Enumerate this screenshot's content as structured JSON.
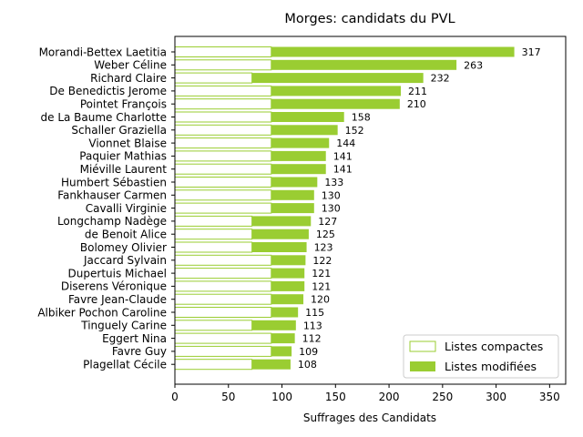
{
  "chart_data": {
    "type": "bar",
    "orientation": "horizontal",
    "stacked": true,
    "title": "Morges: candidats du PVL",
    "xlabel": "Suffrages des Candidats",
    "ylabel": "",
    "xlim": [
      0,
      365
    ],
    "xticks": [
      0,
      50,
      100,
      150,
      200,
      250,
      300,
      350
    ],
    "legend_position": "bottom-right",
    "colors": {
      "compact": "#ffffff",
      "compact_edge": "#9acd32",
      "modified": "#9acd32"
    },
    "categories": [
      "Morandi-Bettex Laetitia",
      "Weber Céline",
      "Richard Claire",
      "De Benedictis Jerome",
      "Pointet François",
      "de La Baume Charlotte",
      "Schaller Graziella",
      "Vionnet Blaise",
      "Paquier Mathias",
      "Miéville Laurent",
      "Humbert Sébastien",
      "Fankhauser Carmen",
      "Cavalli Virginie",
      "Longchamp Nadège",
      "de Benoit Alice",
      "Bolomey Olivier",
      "Jaccard Sylvain",
      "Dupertuis Michael",
      "Diserens Véronique",
      "Favre Jean-Claude",
      "Albiker Pochon Caroline",
      "Tinguely Carine",
      "Eggert Nina",
      "Favre Guy",
      "Plagellat Cécile"
    ],
    "series": [
      {
        "name": "Listes compactes",
        "values": [
          90,
          90,
          72,
          90,
          90,
          90,
          90,
          90,
          90,
          90,
          90,
          90,
          90,
          72,
          72,
          72,
          90,
          90,
          90,
          90,
          90,
          72,
          90,
          90,
          72
        ]
      },
      {
        "name": "Listes modifiées",
        "values": [
          227,
          173,
          160,
          121,
          120,
          68,
          62,
          54,
          51,
          51,
          43,
          40,
          40,
          55,
          53,
          51,
          32,
          31,
          31,
          30,
          25,
          41,
          22,
          19,
          36
        ]
      }
    ],
    "totals": [
      317,
      263,
      232,
      211,
      210,
      158,
      152,
      144,
      141,
      141,
      133,
      130,
      130,
      127,
      125,
      123,
      122,
      121,
      121,
      120,
      115,
      113,
      112,
      109,
      108
    ]
  }
}
